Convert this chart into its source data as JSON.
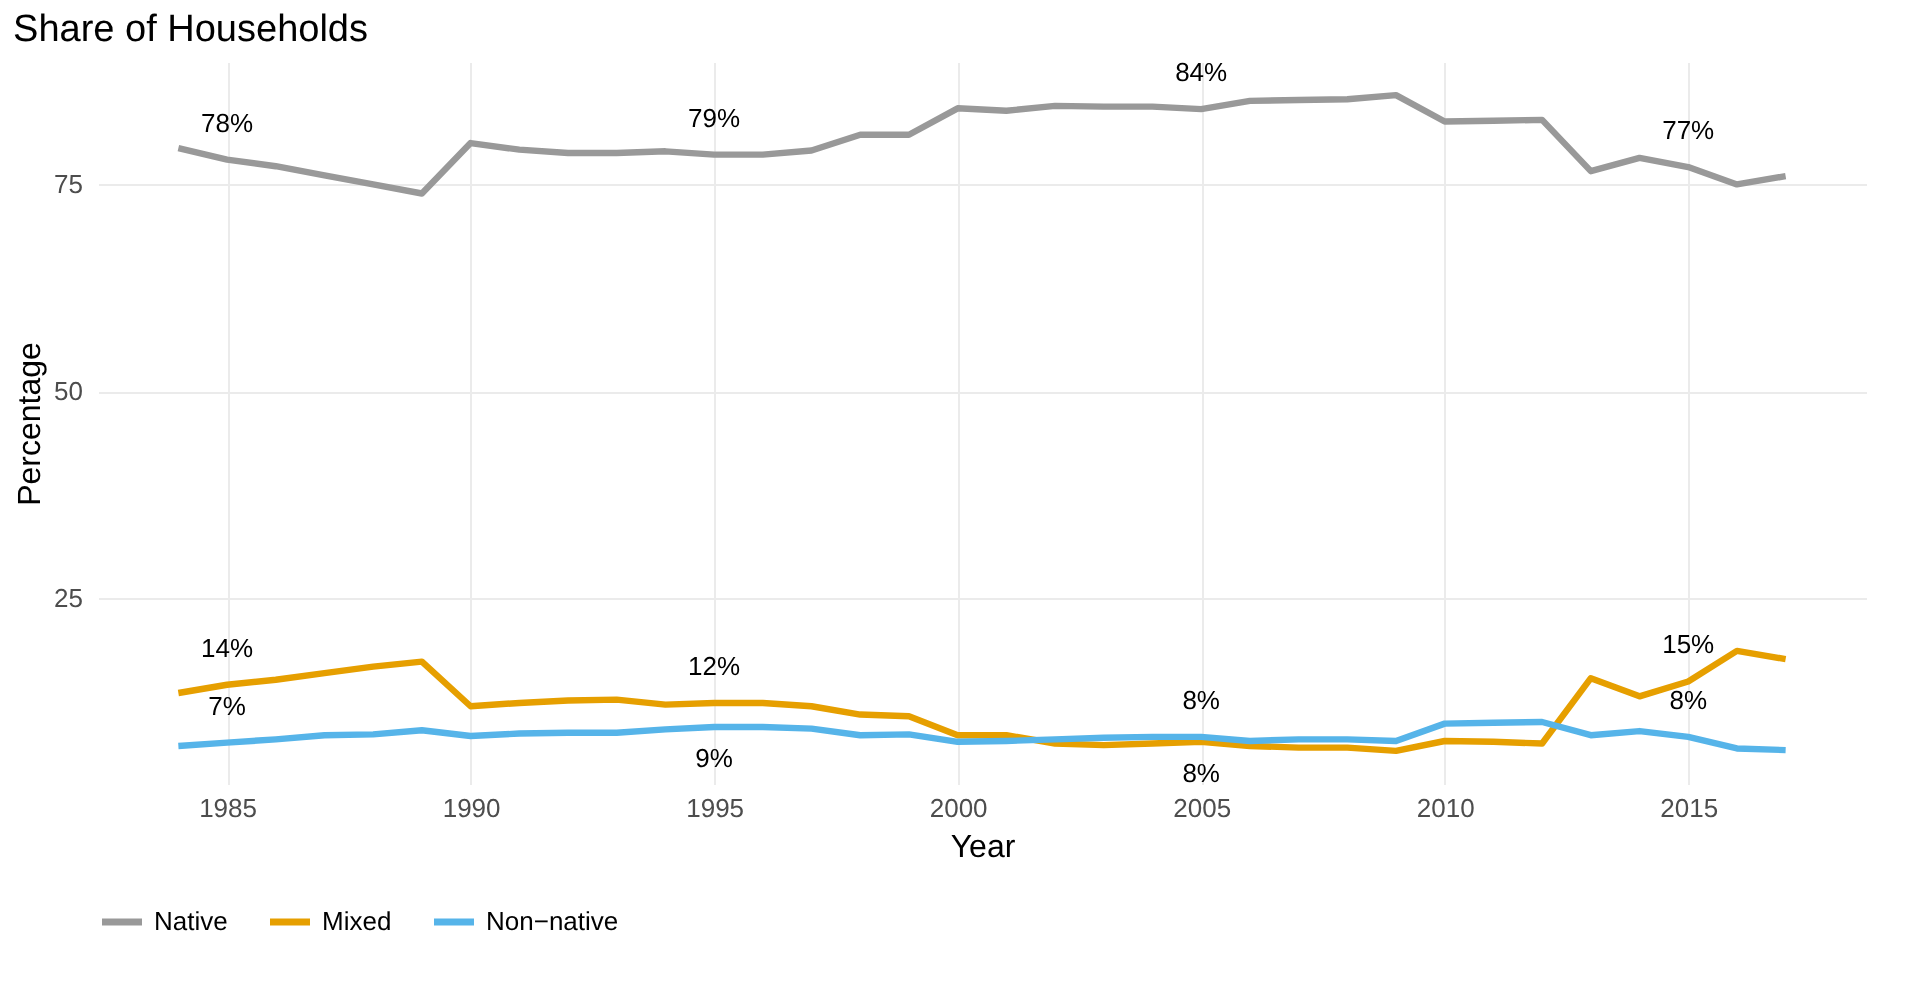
{
  "chart_data": {
    "type": "line",
    "title": "Share of Households",
    "xlabel": "Year",
    "ylabel": "Percentage",
    "x": [
      1984,
      1985,
      1986,
      1987,
      1988,
      1989,
      1990,
      1991,
      1992,
      1993,
      1994,
      1995,
      1996,
      1997,
      1998,
      1999,
      2000,
      2001,
      2002,
      2003,
      2004,
      2005,
      2006,
      2007,
      2008,
      2009,
      2010,
      2011,
      2012,
      2013,
      2014,
      2015,
      2016,
      2017
    ],
    "series": [
      {
        "name": "Native",
        "color": "#999999",
        "values": [
          79.4,
          78.0,
          77.2,
          76.1,
          75.0,
          73.9,
          80.0,
          79.2,
          78.8,
          78.8,
          79.0,
          78.6,
          78.6,
          79.1,
          81.0,
          81.0,
          84.2,
          83.9,
          84.5,
          84.4,
          84.4,
          84.1,
          85.1,
          85.2,
          85.3,
          85.8,
          82.6,
          82.7,
          82.8,
          76.6,
          78.2,
          77.1,
          75.0,
          76.0
        ]
      },
      {
        "name": "Mixed",
        "color": "#e69f00",
        "values": [
          13.5,
          14.5,
          15.1,
          15.9,
          16.7,
          17.3,
          11.9,
          12.3,
          12.6,
          12.7,
          12.1,
          12.3,
          12.3,
          11.9,
          10.9,
          10.7,
          8.4,
          8.4,
          7.4,
          7.2,
          7.4,
          7.6,
          7.1,
          6.9,
          6.9,
          6.5,
          7.7,
          7.6,
          7.4,
          15.3,
          13.1,
          14.9,
          18.6,
          17.6
        ]
      },
      {
        "name": "Non−native",
        "color": "#56b4e9",
        "values": [
          7.1,
          7.5,
          7.9,
          8.4,
          8.5,
          9.0,
          8.3,
          8.6,
          8.7,
          8.7,
          9.1,
          9.4,
          9.4,
          9.2,
          8.4,
          8.5,
          7.6,
          7.7,
          7.9,
          8.1,
          8.2,
          8.2,
          7.7,
          7.9,
          7.9,
          7.7,
          9.8,
          9.9,
          10.0,
          8.4,
          8.9,
          8.2,
          6.8,
          6.6
        ]
      }
    ],
    "annotations": [
      {
        "text": "78%",
        "x": 1985,
        "y": 78.0
      },
      {
        "text": "79%",
        "x": 1995,
        "y": 78.6
      },
      {
        "text": "84%",
        "x": 2005,
        "y": 84.1
      },
      {
        "text": "77%",
        "x": 2015,
        "y": 77.1
      },
      {
        "text": "14%",
        "x": 1985,
        "y": 14.5
      },
      {
        "text": "12%",
        "x": 1995,
        "y": 12.3
      },
      {
        "text": "8%",
        "x": 2005,
        "y": 7.6
      },
      {
        "text": "15%",
        "x": 2015,
        "y": 14.9
      },
      {
        "text": "7%",
        "x": 1985,
        "y": 7.5
      },
      {
        "text": "9%",
        "x": 1995,
        "y": 9.4
      },
      {
        "text": "8%",
        "x": 2005,
        "y": 8.2
      },
      {
        "text": "8%",
        "x": 2015,
        "y": 8.2
      }
    ],
    "xlim": [
      1982.35,
      2018.65
    ],
    "xticks": [
      1985,
      1990,
      1995,
      2000,
      2005,
      2010,
      2015
    ],
    "ylim": [
      2.5,
      89.8
    ],
    "yticks": [
      25,
      50,
      75
    ],
    "grid": true,
    "legend": "bottom",
    "line_style": "solid",
    "marker": "none"
  }
}
